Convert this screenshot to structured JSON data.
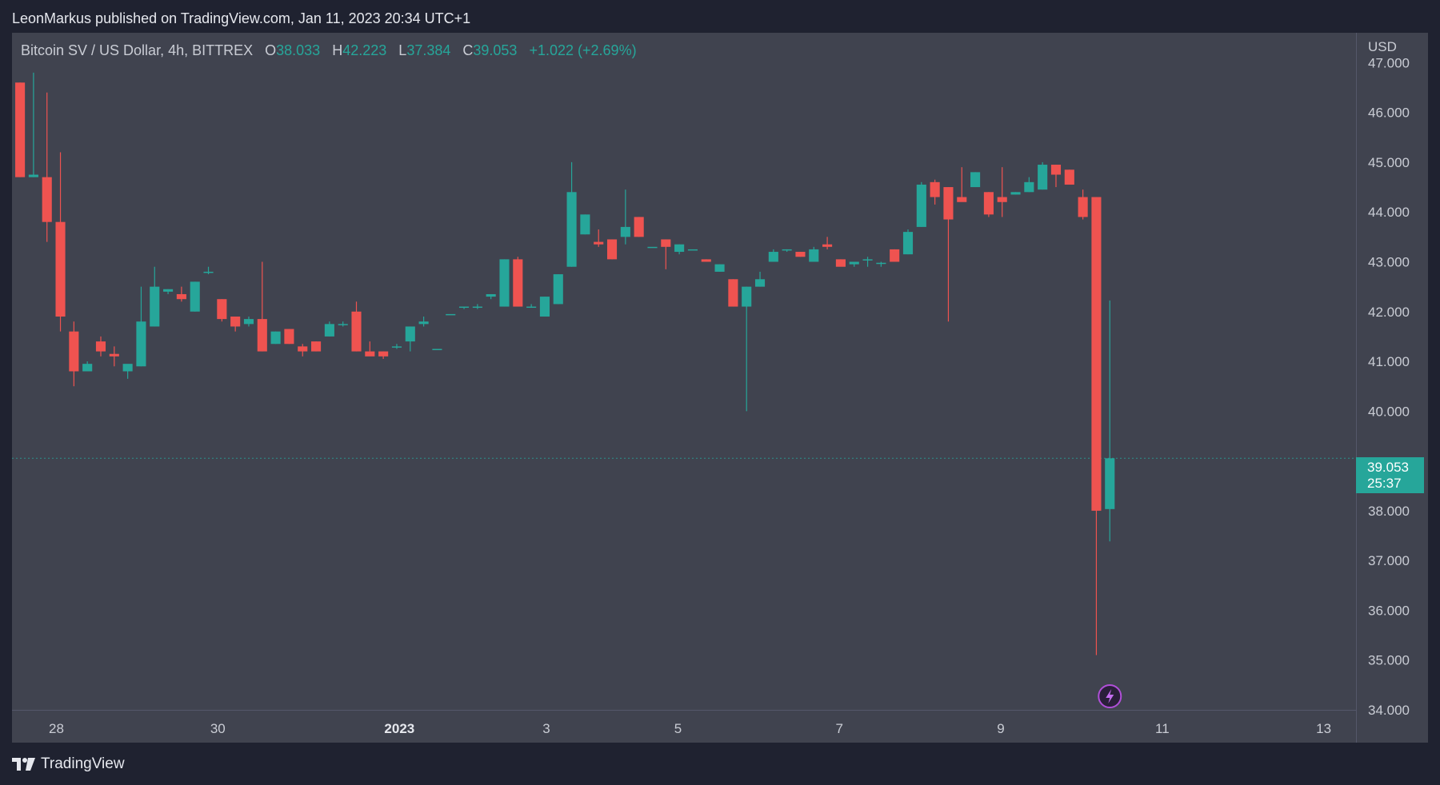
{
  "header": {
    "text": "LeonMarkus published on TradingView.com, Jan 11, 2023 20:34 UTC+1"
  },
  "legend": {
    "symbol": "Bitcoin SV / US Dollar, 4h, BITTREX",
    "o_label": "O",
    "o_value": "38.033",
    "h_label": "H",
    "h_value": "42.223",
    "l_label": "L",
    "l_value": "37.384",
    "c_label": "C",
    "c_value": "39.053",
    "change": "+1.022 (+2.69%)"
  },
  "price_axis": {
    "currency": "USD"
  },
  "last_price": {
    "value": "39.053",
    "countdown": "25:37"
  },
  "footer": {
    "brand": "TradingView"
  },
  "colors": {
    "up": "#26a69a",
    "down": "#ef5350",
    "background": "#40434f",
    "frame": "#1f2230"
  },
  "icons": {
    "logo": "tradingview-logo-icon",
    "event": "lightning-event-icon"
  },
  "chart_data": {
    "type": "candlestick",
    "interval": "4h",
    "x_unit": "days (date axis)",
    "ylim": [
      34,
      47.6
    ],
    "y_ticks": [
      "47.000",
      "46.000",
      "45.000",
      "44.000",
      "43.000",
      "42.000",
      "41.000",
      "40.000",
      "39.000",
      "38.000",
      "37.000",
      "36.000",
      "35.000",
      "34.000"
    ],
    "x_ticks": [
      {
        "label": "28",
        "x": 0,
        "bold": false
      },
      {
        "label": "30",
        "x": 2,
        "bold": false
      },
      {
        "label": "2023",
        "x": 4.25,
        "bold": true
      },
      {
        "label": "3",
        "x": 6.07,
        "bold": false
      },
      {
        "label": "5",
        "x": 7.7,
        "bold": false
      },
      {
        "label": "7",
        "x": 9.7,
        "bold": false
      },
      {
        "label": "9",
        "x": 11.7,
        "bold": false
      },
      {
        "label": "11",
        "x": 13.7,
        "bold": false
      },
      {
        "label": "13",
        "x": 15.7,
        "bold": false
      }
    ],
    "xlim": [
      -0.55,
      16.1
    ],
    "candles": [
      [
        46.6,
        46.6,
        44.7,
        44.7
      ],
      [
        44.7,
        46.8,
        44.7,
        44.75
      ],
      [
        44.7,
        46.4,
        43.4,
        43.8
      ],
      [
        43.8,
        45.2,
        41.6,
        41.9
      ],
      [
        41.6,
        41.8,
        40.5,
        40.8
      ],
      [
        40.8,
        41.0,
        40.8,
        40.95
      ],
      [
        41.4,
        41.5,
        41.1,
        41.2
      ],
      [
        41.15,
        41.3,
        40.9,
        41.1
      ],
      [
        40.8,
        40.9,
        40.65,
        40.95
      ],
      [
        40.9,
        42.5,
        40.9,
        41.8
      ],
      [
        41.7,
        42.9,
        41.7,
        42.5
      ],
      [
        42.4,
        42.45,
        42.35,
        42.45
      ],
      [
        42.35,
        42.5,
        42.2,
        42.25
      ],
      [
        42.0,
        42.6,
        42.0,
        42.6
      ],
      [
        42.8,
        42.9,
        42.75,
        42.8
      ],
      [
        42.25,
        42.25,
        41.8,
        41.85
      ],
      [
        41.9,
        41.9,
        41.6,
        41.7
      ],
      [
        41.75,
        41.9,
        41.7,
        41.85
      ],
      [
        41.85,
        43.0,
        41.2,
        41.2
      ],
      [
        41.35,
        41.6,
        41.35,
        41.6
      ],
      [
        41.65,
        41.65,
        41.35,
        41.35
      ],
      [
        41.3,
        41.35,
        41.1,
        41.2
      ],
      [
        41.4,
        41.4,
        41.2,
        41.2
      ],
      [
        41.5,
        41.8,
        41.5,
        41.75
      ],
      [
        41.75,
        41.8,
        41.7,
        41.75
      ],
      [
        42.0,
        42.2,
        41.2,
        41.2
      ],
      [
        41.2,
        41.4,
        41.2,
        41.1
      ],
      [
        41.2,
        41.2,
        41.05,
        41.1
      ],
      [
        41.3,
        41.35,
        41.25,
        41.3
      ],
      [
        41.4,
        41.7,
        41.2,
        41.7
      ],
      [
        41.75,
        41.9,
        41.7,
        41.8
      ],
      [
        41.25,
        41.25,
        41.25,
        41.25
      ],
      [
        41.95,
        41.95,
        41.95,
        41.95
      ],
      [
        42.1,
        42.1,
        42.05,
        42.1
      ],
      [
        42.1,
        42.15,
        42.05,
        42.1
      ],
      [
        42.3,
        42.35,
        42.25,
        42.35
      ],
      [
        42.1,
        43.05,
        42.1,
        43.05
      ],
      [
        43.05,
        43.1,
        42.1,
        42.1
      ],
      [
        42.1,
        42.15,
        42.1,
        42.1
      ],
      [
        41.9,
        42.3,
        41.9,
        42.3
      ],
      [
        42.15,
        42.75,
        42.15,
        42.75
      ],
      [
        42.9,
        45.0,
        42.9,
        44.4
      ],
      [
        43.55,
        43.95,
        43.55,
        43.95
      ],
      [
        43.4,
        43.65,
        43.3,
        43.35
      ],
      [
        43.45,
        43.45,
        43.05,
        43.05
      ],
      [
        43.5,
        44.45,
        43.35,
        43.7
      ],
      [
        43.9,
        43.9,
        43.5,
        43.5
      ],
      [
        43.3,
        43.3,
        43.3,
        43.3
      ],
      [
        43.45,
        43.45,
        42.85,
        43.3
      ],
      [
        43.2,
        43.35,
        43.15,
        43.35
      ],
      [
        43.25,
        43.25,
        43.25,
        43.25
      ],
      [
        43.05,
        43.05,
        43.0,
        43.0
      ],
      [
        42.8,
        42.95,
        42.8,
        42.95
      ],
      [
        42.65,
        42.65,
        42.1,
        42.1
      ],
      [
        42.1,
        42.5,
        40.0,
        42.5
      ],
      [
        42.5,
        42.8,
        42.5,
        42.65
      ],
      [
        43.0,
        43.25,
        43.0,
        43.2
      ],
      [
        43.25,
        43.25,
        43.2,
        43.25
      ],
      [
        43.2,
        43.2,
        43.1,
        43.1
      ],
      [
        43.0,
        43.3,
        43.0,
        43.25
      ],
      [
        43.35,
        43.5,
        43.25,
        43.3
      ],
      [
        43.05,
        43.05,
        42.95,
        42.9
      ],
      [
        42.95,
        43.0,
        42.9,
        43.0
      ],
      [
        43.05,
        43.1,
        42.9,
        43.05
      ],
      [
        42.98,
        43.0,
        42.9,
        42.98
      ],
      [
        43.25,
        43.25,
        43.0,
        43.0
      ],
      [
        43.15,
        43.65,
        43.15,
        43.6
      ],
      [
        43.7,
        44.6,
        43.7,
        44.55
      ],
      [
        44.6,
        44.65,
        44.15,
        44.3
      ],
      [
        44.5,
        44.5,
        41.8,
        43.85
      ],
      [
        44.3,
        44.9,
        44.3,
        44.2
      ],
      [
        44.5,
        44.8,
        44.5,
        44.8
      ],
      [
        44.4,
        44.4,
        43.9,
        43.95
      ],
      [
        44.3,
        44.9,
        43.9,
        44.2
      ],
      [
        44.35,
        44.4,
        44.35,
        44.4
      ],
      [
        44.4,
        44.7,
        44.4,
        44.6
      ],
      [
        44.45,
        45.0,
        44.45,
        44.95
      ],
      [
        44.95,
        44.95,
        44.5,
        44.75
      ],
      [
        44.85,
        44.85,
        44.6,
        44.55
      ],
      [
        44.3,
        44.45,
        43.85,
        43.9
      ],
      [
        44.3,
        44.3,
        38.0,
        38.0
      ],
      [
        38.033,
        42.223,
        37.384,
        39.053
      ]
    ],
    "extra_wicks": [
      {
        "candle": 80,
        "low": 35.1
      }
    ],
    "last_price": 39.053
  }
}
